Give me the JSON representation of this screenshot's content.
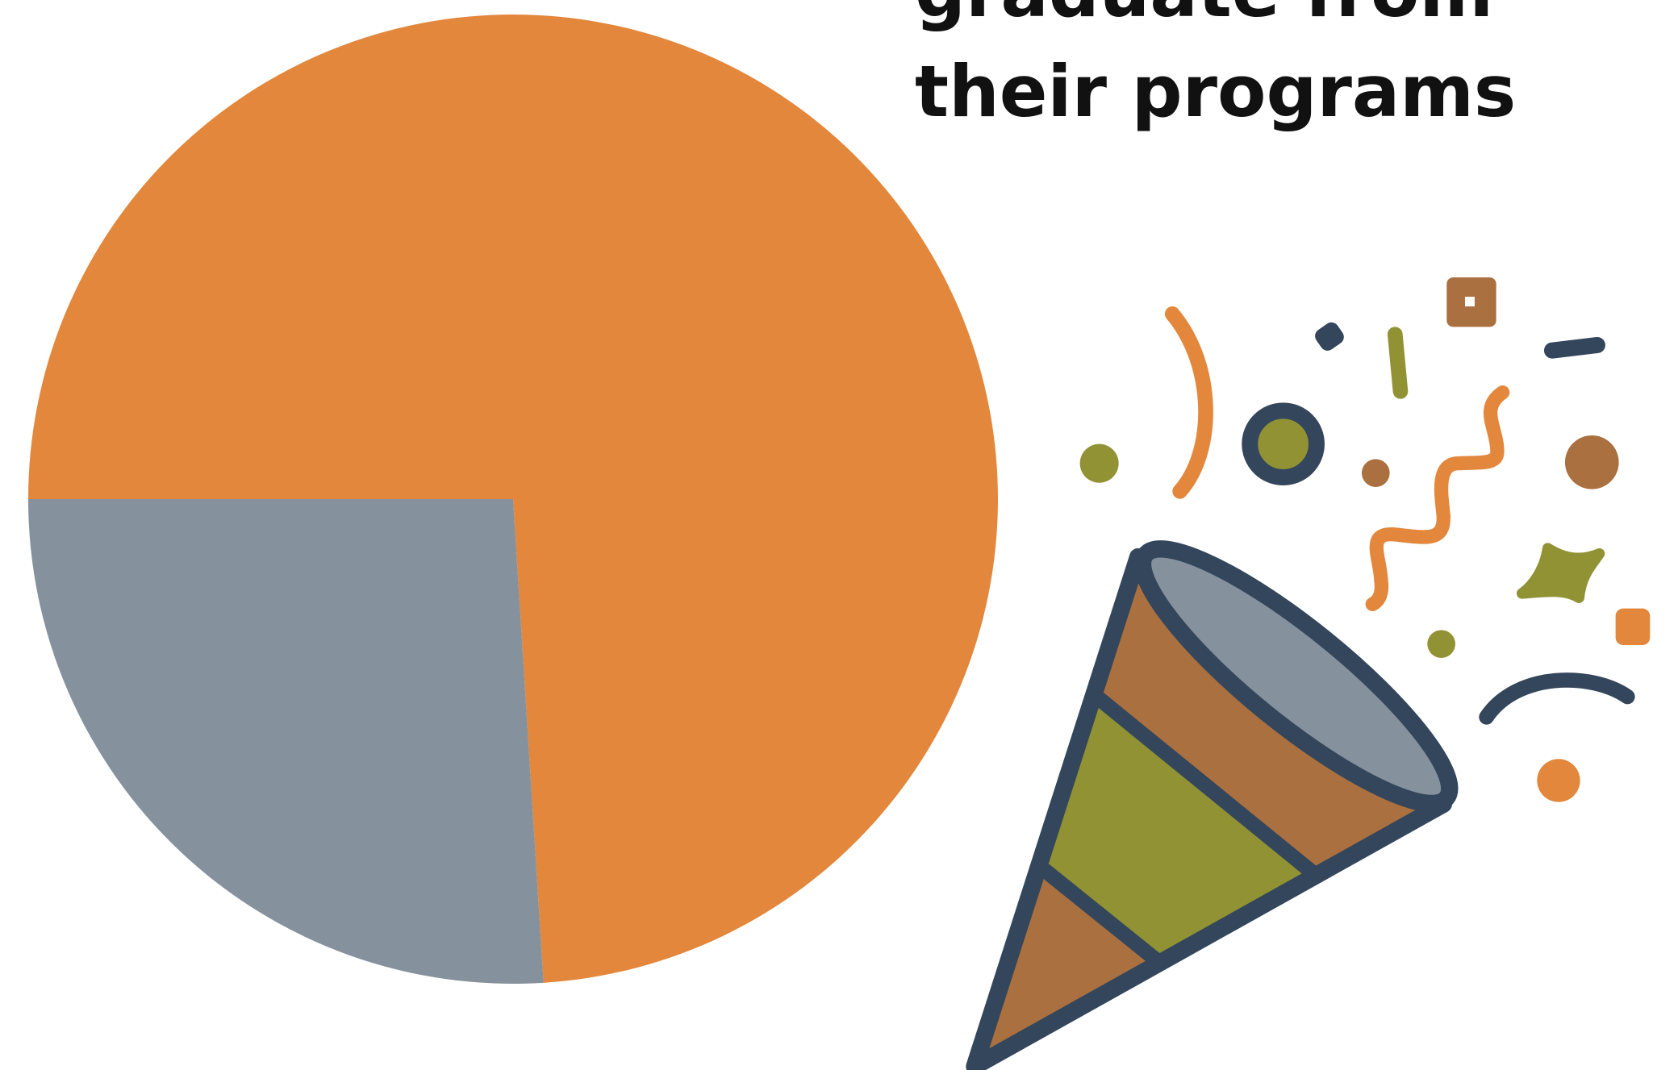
{
  "chart_data": {
    "type": "pie",
    "title": [
      "graduate from",
      "their programs"
    ],
    "values": [
      74,
      26
    ],
    "colors": [
      "#e2873b",
      "#86919e"
    ],
    "start_angle": 180
  }
}
